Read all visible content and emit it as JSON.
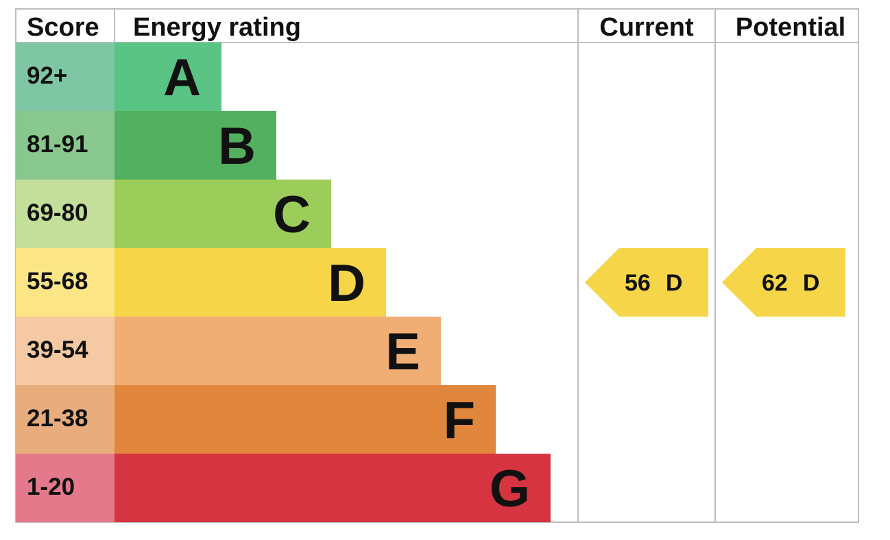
{
  "headers": {
    "score": "Score",
    "energy_rating": "Energy rating",
    "current": "Current",
    "potential": "Potential"
  },
  "chart_data": {
    "type": "bar",
    "title": "",
    "categories": [
      "A",
      "B",
      "C",
      "D",
      "E",
      "F",
      "G"
    ],
    "bands": [
      {
        "letter": "A",
        "score_range": "92+",
        "color": "#59c484",
        "score_bg": "#7fc6a4"
      },
      {
        "letter": "B",
        "score_range": "81-91",
        "color": "#52b060",
        "score_bg": "#88c78e"
      },
      {
        "letter": "C",
        "score_range": "69-80",
        "color": "#9ccd5a",
        "score_bg": "#c3df99"
      },
      {
        "letter": "D",
        "score_range": "55-68",
        "color": "#f6d549",
        "score_bg": "#fbe584"
      },
      {
        "letter": "E",
        "score_range": "39-54",
        "color": "#f0ae74",
        "score_bg": "#f4c9a4"
      },
      {
        "letter": "F",
        "score_range": "21-38",
        "color": "#e0863d",
        "score_bg": "#e8ad7c"
      },
      {
        "letter": "G",
        "score_range": "1-20",
        "color": "#d63440",
        "score_bg": "#e3798a"
      }
    ],
    "current": {
      "score": "56",
      "band": "D",
      "color": "#f6d549"
    },
    "potential": {
      "score": "62",
      "band": "D",
      "color": "#f6d549"
    }
  }
}
